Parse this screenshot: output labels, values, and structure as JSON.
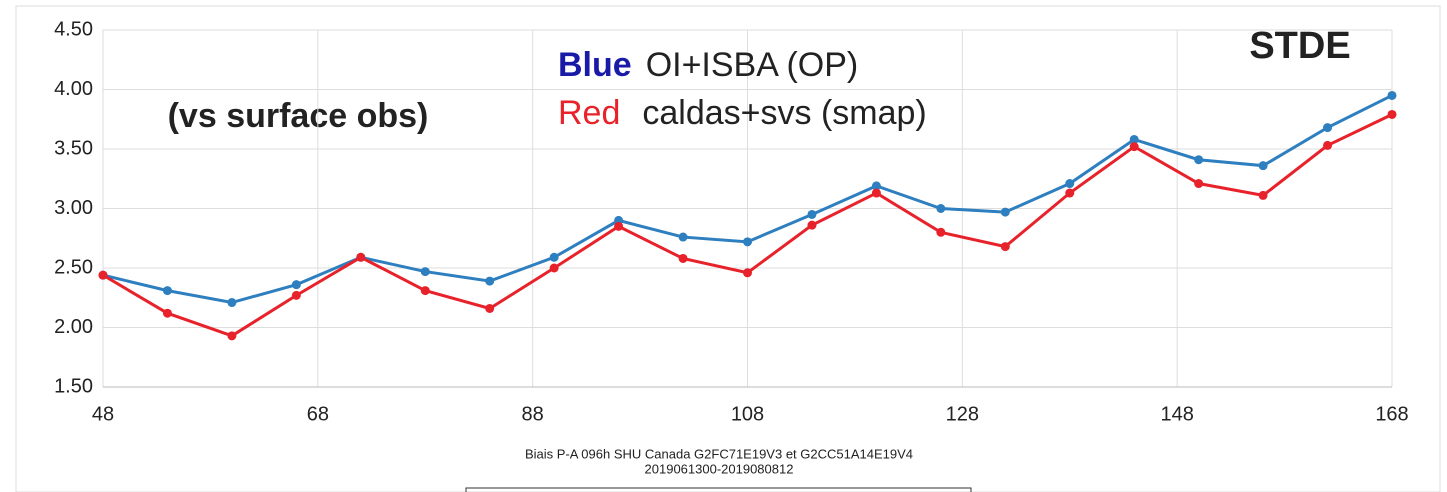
{
  "chart_data": {
    "type": "line",
    "title": "STDE",
    "annotation": "(vs surface obs)",
    "caption": [
      "Biais P-A 096h SHU Canada G2FC71E19V3 et G2CC51A14E19V4",
      "2019061300-2019080812"
    ],
    "x": [
      48,
      54,
      60,
      66,
      72,
      78,
      84,
      90,
      96,
      102,
      108,
      114,
      120,
      126,
      132,
      138,
      144,
      150,
      156,
      162,
      168
    ],
    "series": [
      {
        "name": "OI+ISBA (OP)",
        "legend_color_word": "Blue",
        "color": "#2e7fbf",
        "legend_word_color": "#1a1aa8",
        "values": [
          2.44,
          2.31,
          2.21,
          2.36,
          2.59,
          2.47,
          2.39,
          2.59,
          2.9,
          2.76,
          2.72,
          2.95,
          3.19,
          3.0,
          2.97,
          3.21,
          3.58,
          3.41,
          3.36,
          3.68,
          3.95
        ]
      },
      {
        "name": "caldas+svs (smap)",
        "legend_color_word": "Red",
        "color": "#e8222a",
        "legend_word_color": "#e8222a",
        "values": [
          2.44,
          2.12,
          1.93,
          2.27,
          2.59,
          2.31,
          2.16,
          2.5,
          2.85,
          2.58,
          2.46,
          2.86,
          3.13,
          2.8,
          2.68,
          3.13,
          3.52,
          3.21,
          3.11,
          3.53,
          3.79
        ]
      }
    ],
    "xlim": [
      48,
      168
    ],
    "xticks": [
      48,
      68,
      88,
      108,
      128,
      148,
      168
    ],
    "ylim": [
      1.5,
      4.5
    ],
    "yticks": [
      {
        "value": 1.5,
        "label": "1.50"
      },
      {
        "value": 2,
        "label": "2.00"
      },
      {
        "value": 2.5,
        "label": "2.50"
      },
      {
        "value": 3,
        "label": "3.00"
      },
      {
        "value": 3.5,
        "label": "3.50"
      },
      {
        "value": 4,
        "label": "4.00"
      },
      {
        "value": 4.5,
        "label": "4.50"
      }
    ],
    "grid": true
  }
}
